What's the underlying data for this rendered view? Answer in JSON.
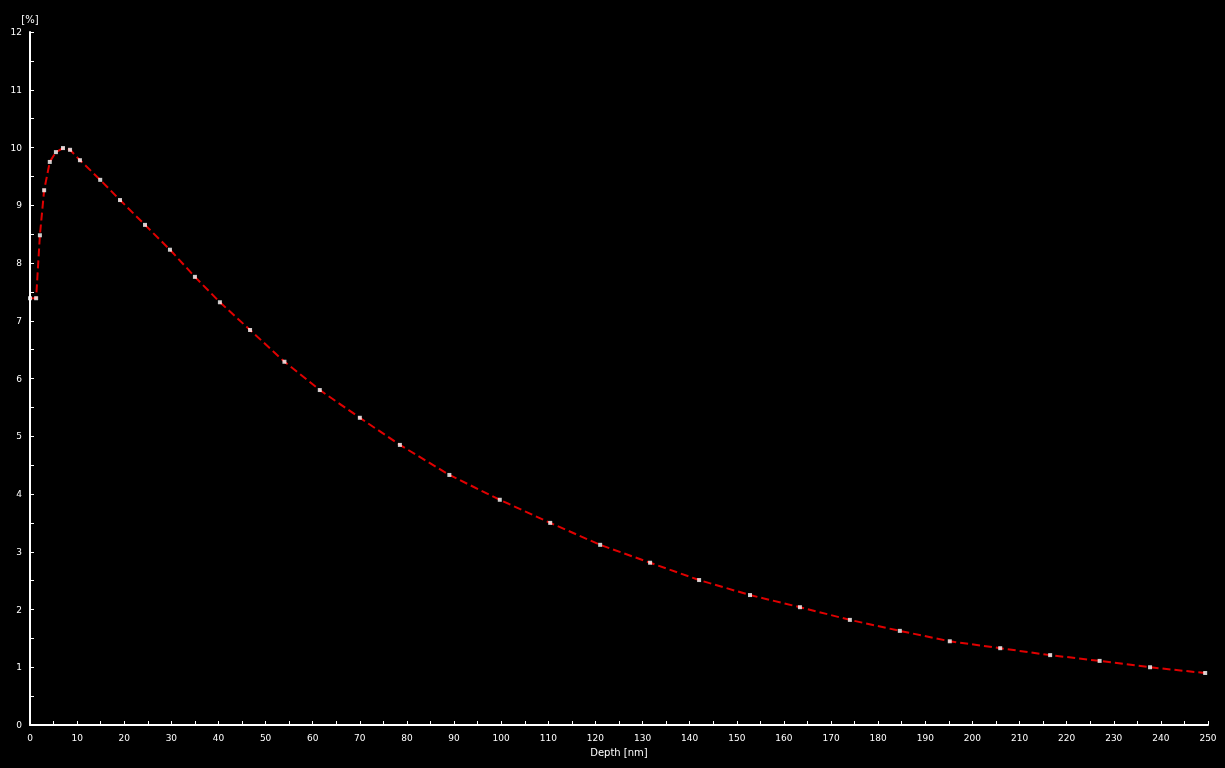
{
  "chart_data": {
    "type": "line",
    "xlabel": "Depth [nm]",
    "ylabel": "[%]",
    "x": [
      0,
      1.3,
      2.1,
      3.0,
      4.2,
      5.5,
      7,
      8.5,
      10.6,
      14.9,
      19.1,
      24.4,
      29.7,
      35,
      40.3,
      46.7,
      54,
      61.5,
      70,
      78.5,
      89,
      99.7,
      110.4,
      121,
      131.6,
      142,
      152.8,
      163.4,
      174,
      184.6,
      195.2,
      205.9,
      216.5,
      227,
      237.7,
      249.4
    ],
    "series": [
      {
        "type": "scatter",
        "color": "#ffffff",
        "marker": "square",
        "values": [
          7.39,
          7.39,
          8.48,
          9.26,
          9.75,
          9.92,
          9.99,
          9.96,
          9.78,
          9.44,
          9.09,
          8.66,
          8.23,
          7.76,
          7.32,
          6.84,
          6.29,
          5.8,
          5.32,
          4.85,
          4.33,
          3.9,
          3.5,
          3.12,
          2.81,
          2.51,
          2.25,
          2.04,
          1.82,
          1.63,
          1.45,
          1.33,
          1.21,
          1.11,
          1.0,
          0.9
        ]
      },
      {
        "color": "#e00000",
        "line_style": "dashed",
        "marker": "none",
        "values": [
          7.39,
          7.39,
          8.48,
          9.26,
          9.75,
          9.92,
          9.99,
          9.96,
          9.78,
          9.44,
          9.09,
          8.66,
          8.23,
          7.76,
          7.32,
          6.84,
          6.29,
          5.8,
          5.32,
          4.85,
          4.33,
          3.9,
          3.5,
          3.12,
          2.81,
          2.51,
          2.25,
          2.04,
          1.82,
          1.63,
          1.45,
          1.33,
          1.21,
          1.11,
          1.0,
          0.9
        ]
      }
    ],
    "xlim": [
      0,
      250
    ],
    "xticks": [
      0,
      {
        "value": 5,
        "label": null
      },
      10,
      {
        "value": 15,
        "label": null
      },
      20,
      {
        "value": 25,
        "label": null
      },
      30,
      {
        "value": 35,
        "label": null
      },
      40,
      {
        "value": 45,
        "label": null
      },
      50,
      {
        "value": 55,
        "label": null
      },
      60,
      {
        "value": 65,
        "label": null
      },
      70,
      {
        "value": 75,
        "label": null
      },
      80,
      {
        "value": 85,
        "label": null
      },
      90,
      {
        "value": 95,
        "label": null
      },
      100,
      {
        "value": 105,
        "label": null
      },
      110,
      {
        "value": 115,
        "label": null
      },
      120,
      {
        "value": 125,
        "label": null
      },
      130,
      {
        "value": 135,
        "label": null
      },
      140,
      {
        "value": 145,
        "label": null
      },
      150,
      {
        "value": 155,
        "label": null
      },
      160,
      {
        "value": 165,
        "label": null
      },
      170,
      {
        "value": 175,
        "label": null
      },
      180,
      {
        "value": 185,
        "label": null
      },
      190,
      {
        "value": 195,
        "label": null
      },
      200,
      {
        "value": 205,
        "label": null
      },
      210,
      {
        "value": 215,
        "label": null
      },
      220,
      {
        "value": 225,
        "label": null
      },
      230,
      {
        "value": 235,
        "label": null
      },
      240,
      {
        "value": 245,
        "label": null
      },
      250
    ],
    "ylim": [
      0,
      12
    ],
    "yticks": [
      0,
      {
        "value": 0.5,
        "label": null
      },
      1,
      {
        "value": 1.5,
        "label": null
      },
      2,
      {
        "value": 2.5,
        "label": null
      },
      3,
      {
        "value": 3.5,
        "label": null
      },
      4,
      {
        "value": 4.5,
        "label": null
      },
      5,
      {
        "value": 5.5,
        "label": null
      },
      6,
      {
        "value": 6.5,
        "label": null
      },
      7,
      {
        "value": 7.5,
        "label": null
      },
      8,
      {
        "value": 8.5,
        "label": null
      },
      9,
      {
        "value": 9.5,
        "label": null
      },
      10,
      {
        "value": 10.5,
        "label": null
      },
      11,
      {
        "value": 11.5,
        "label": null
      },
      12
    ],
    "grid": false
  }
}
